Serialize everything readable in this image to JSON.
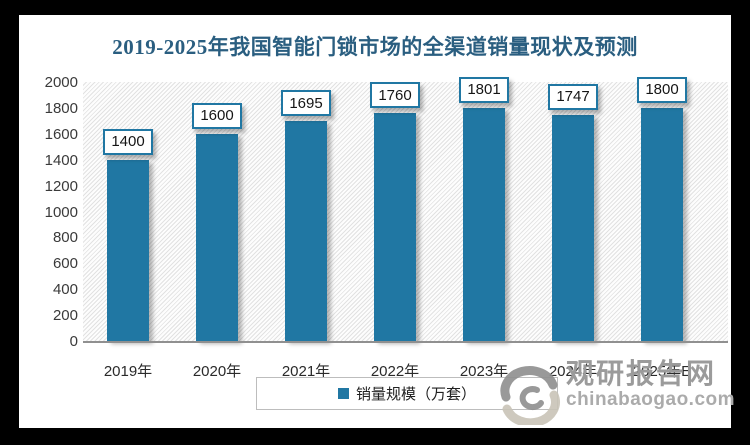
{
  "page": {
    "background": "#000000",
    "surface": "#ffffff"
  },
  "colors": {
    "bar": "#2077a3",
    "title": "#2a5e80",
    "watermark_dark": "#8f8f8f",
    "watermark_light": "#c9c4b7"
  },
  "legend": {
    "label": "销量规模（万套）"
  },
  "watermark": {
    "name": "观研报告网",
    "domain": "chinabaogao.com"
  },
  "chart_data": {
    "type": "bar",
    "title": "2019-2025年我国智能门锁市场的全渠道销量现状及预测",
    "categories": [
      "2019年",
      "2020年",
      "2021年",
      "2022年",
      "2023年",
      "2024年",
      "2025年E"
    ],
    "series": [
      {
        "name": "销量规模（万套）",
        "values": [
          1400,
          1600,
          1695,
          1760,
          1801,
          1747,
          1800
        ]
      }
    ],
    "xlabel": "",
    "ylabel": "",
    "ylim": [
      0,
      2000
    ],
    "yticks": [
      0,
      200,
      400,
      600,
      800,
      1000,
      1200,
      1400,
      1600,
      1800,
      2000
    ],
    "grid": false,
    "plot_fill": "diagonal-hatch",
    "data_labels": true,
    "legend_position": "bottom"
  }
}
